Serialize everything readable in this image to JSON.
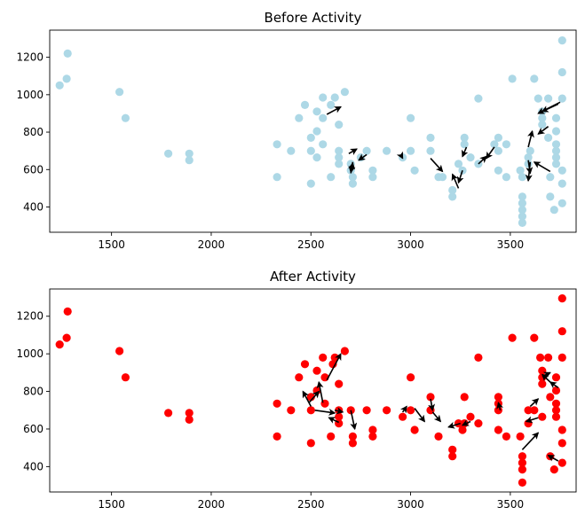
{
  "chart_data": [
    {
      "type": "scatter",
      "title": "Before Activity",
      "xlabel": "",
      "ylabel": "",
      "xlim": [
        1190,
        3830
      ],
      "ylim": [
        265,
        1345
      ],
      "x_ticks": [
        1500,
        2000,
        2500,
        3000,
        3500
      ],
      "y_ticks": [
        400,
        600,
        800,
        1000,
        1200
      ],
      "grid": false,
      "legend": "none",
      "marker_color": "#add8e6",
      "arrow_color": "#000000",
      "points": [
        [
          1240,
          1050
        ],
        [
          1275,
          1085
        ],
        [
          1280,
          1220
        ],
        [
          1540,
          1015
        ],
        [
          1570,
          875
        ],
        [
          1785,
          685
        ],
        [
          1890,
          685
        ],
        [
          1890,
          650
        ],
        [
          2330,
          735
        ],
        [
          2330,
          560
        ],
        [
          2400,
          700
        ],
        [
          2440,
          875
        ],
        [
          2470,
          945
        ],
        [
          2500,
          770
        ],
        [
          2500,
          700
        ],
        [
          2500,
          525
        ],
        [
          2530,
          910
        ],
        [
          2530,
          805
        ],
        [
          2530,
          665
        ],
        [
          2560,
          985
        ],
        [
          2560,
          735
        ],
        [
          2560,
          875
        ],
        [
          2600,
          560
        ],
        [
          2600,
          945
        ],
        [
          2620,
          985
        ],
        [
          2640,
          700
        ],
        [
          2640,
          665
        ],
        [
          2640,
          630
        ],
        [
          2640,
          840
        ],
        [
          2670,
          1015
        ],
        [
          2700,
          630
        ],
        [
          2700,
          595
        ],
        [
          2710,
          560
        ],
        [
          2710,
          525
        ],
        [
          2750,
          665
        ],
        [
          2780,
          700
        ],
        [
          2810,
          595
        ],
        [
          2810,
          560
        ],
        [
          2880,
          700
        ],
        [
          2960,
          665
        ],
        [
          3000,
          700
        ],
        [
          3000,
          875
        ],
        [
          3020,
          595
        ],
        [
          3100,
          770
        ],
        [
          3100,
          700
        ],
        [
          3140,
          560
        ],
        [
          3160,
          560
        ],
        [
          3210,
          490
        ],
        [
          3210,
          455
        ],
        [
          3240,
          630
        ],
        [
          3260,
          595
        ],
        [
          3270,
          735
        ],
        [
          3270,
          770
        ],
        [
          3300,
          665
        ],
        [
          3340,
          630
        ],
        [
          3340,
          980
        ],
        [
          3420,
          735
        ],
        [
          3440,
          770
        ],
        [
          3440,
          700
        ],
        [
          3440,
          595
        ],
        [
          3480,
          560
        ],
        [
          3480,
          735
        ],
        [
          3510,
          1085
        ],
        [
          3550,
          595
        ],
        [
          3560,
          455
        ],
        [
          3560,
          420
        ],
        [
          3560,
          385
        ],
        [
          3560,
          350
        ],
        [
          3560,
          315
        ],
        [
          3560,
          560
        ],
        [
          3590,
          665
        ],
        [
          3590,
          630
        ],
        [
          3600,
          700
        ],
        [
          3620,
          1085
        ],
        [
          3640,
          980
        ],
        [
          3660,
          910
        ],
        [
          3660,
          875
        ],
        [
          3660,
          840
        ],
        [
          3690,
          980
        ],
        [
          3690,
          770
        ],
        [
          3700,
          560
        ],
        [
          3700,
          455
        ],
        [
          3720,
          385
        ],
        [
          3730,
          875
        ],
        [
          3730,
          805
        ],
        [
          3730,
          735
        ],
        [
          3730,
          700
        ],
        [
          3730,
          665
        ],
        [
          3730,
          630
        ],
        [
          3760,
          1290
        ],
        [
          3760,
          1120
        ],
        [
          3760,
          980
        ],
        [
          3760,
          595
        ],
        [
          3760,
          525
        ],
        [
          3760,
          420
        ]
      ],
      "arrows": [
        [
          2580,
          895,
          2650,
          935
        ],
        [
          2690,
          685,
          2730,
          710
        ],
        [
          2780,
          680,
          2740,
          650
        ],
        [
          2700,
          580,
          2710,
          635
        ],
        [
          2710,
          640,
          2700,
          585
        ],
        [
          2950,
          680,
          2960,
          660
        ],
        [
          3100,
          660,
          3160,
          590
        ],
        [
          3240,
          500,
          3210,
          575
        ],
        [
          3260,
          595,
          3240,
          530
        ],
        [
          3280,
          720,
          3260,
          670
        ],
        [
          3340,
          630,
          3380,
          670
        ],
        [
          3420,
          720,
          3380,
          660
        ],
        [
          3590,
          720,
          3610,
          805
        ],
        [
          3590,
          650,
          3600,
          580
        ],
        [
          3600,
          640,
          3590,
          540
        ],
        [
          3700,
          590,
          3620,
          640
        ],
        [
          3740,
          950,
          3660,
          910
        ],
        [
          3750,
          960,
          3640,
          900
        ],
        [
          3690,
          830,
          3640,
          790
        ]
      ]
    },
    {
      "type": "scatter",
      "title": "After Activity",
      "xlabel": "",
      "ylabel": "",
      "xlim": [
        1190,
        3830
      ],
      "ylim": [
        265,
        1345
      ],
      "x_ticks": [
        1500,
        2000,
        2500,
        3000,
        3500
      ],
      "y_ticks": [
        400,
        600,
        800,
        1000,
        1200
      ],
      "grid": false,
      "legend": "none",
      "marker_color": "#ff0000",
      "arrow_color": "#000000",
      "points": [
        [
          1240,
          1050
        ],
        [
          1275,
          1085
        ],
        [
          1280,
          1225
        ],
        [
          1540,
          1015
        ],
        [
          1570,
          875
        ],
        [
          1785,
          685
        ],
        [
          1890,
          685
        ],
        [
          1890,
          650
        ],
        [
          2330,
          735
        ],
        [
          2330,
          560
        ],
        [
          2400,
          700
        ],
        [
          2440,
          875
        ],
        [
          2470,
          945
        ],
        [
          2500,
          770
        ],
        [
          2500,
          700
        ],
        [
          2500,
          525
        ],
        [
          2530,
          910
        ],
        [
          2530,
          805
        ],
        [
          2560,
          980
        ],
        [
          2570,
          735
        ],
        [
          2570,
          875
        ],
        [
          2600,
          560
        ],
        [
          2610,
          945
        ],
        [
          2620,
          980
        ],
        [
          2640,
          700
        ],
        [
          2640,
          665
        ],
        [
          2640,
          630
        ],
        [
          2640,
          840
        ],
        [
          2670,
          1015
        ],
        [
          2700,
          700
        ],
        [
          2710,
          560
        ],
        [
          2710,
          525
        ],
        [
          2780,
          700
        ],
        [
          2810,
          595
        ],
        [
          2810,
          560
        ],
        [
          2880,
          700
        ],
        [
          2960,
          665
        ],
        [
          3000,
          700
        ],
        [
          3000,
          875
        ],
        [
          3020,
          595
        ],
        [
          3100,
          770
        ],
        [
          3100,
          700
        ],
        [
          3140,
          560
        ],
        [
          3210,
          490
        ],
        [
          3210,
          455
        ],
        [
          3240,
          630
        ],
        [
          3260,
          595
        ],
        [
          3270,
          630
        ],
        [
          3270,
          770
        ],
        [
          3300,
          665
        ],
        [
          3340,
          630
        ],
        [
          3340,
          980
        ],
        [
          3440,
          770
        ],
        [
          3440,
          735
        ],
        [
          3440,
          700
        ],
        [
          3440,
          595
        ],
        [
          3480,
          560
        ],
        [
          3510,
          1085
        ],
        [
          3550,
          560
        ],
        [
          3560,
          455
        ],
        [
          3560,
          420
        ],
        [
          3560,
          385
        ],
        [
          3560,
          315
        ],
        [
          3590,
          700
        ],
        [
          3590,
          630
        ],
        [
          3620,
          1085
        ],
        [
          3620,
          700
        ],
        [
          3650,
          980
        ],
        [
          3660,
          910
        ],
        [
          3660,
          875
        ],
        [
          3660,
          840
        ],
        [
          3660,
          665
        ],
        [
          3690,
          980
        ],
        [
          3700,
          770
        ],
        [
          3700,
          455
        ],
        [
          3720,
          385
        ],
        [
          3730,
          875
        ],
        [
          3730,
          805
        ],
        [
          3730,
          735
        ],
        [
          3730,
          700
        ],
        [
          3730,
          665
        ],
        [
          3760,
          1295
        ],
        [
          3760,
          1120
        ],
        [
          3760,
          980
        ],
        [
          3760,
          595
        ],
        [
          3760,
          525
        ],
        [
          3760,
          420
        ]
      ],
      "arrows": [
        [
          2500,
          720,
          2460,
          800
        ],
        [
          2490,
          740,
          2540,
          800
        ],
        [
          2560,
          740,
          2540,
          850
        ],
        [
          2580,
          860,
          2650,
          1000
        ],
        [
          2520,
          700,
          2620,
          685
        ],
        [
          2620,
          700,
          2660,
          690
        ],
        [
          2640,
          635,
          2590,
          660
        ],
        [
          2700,
          700,
          2720,
          600
        ],
        [
          2960,
          690,
          2980,
          720
        ],
        [
          3020,
          710,
          3070,
          640
        ],
        [
          3100,
          760,
          3110,
          700
        ],
        [
          3110,
          690,
          3150,
          640
        ],
        [
          3250,
          630,
          3190,
          610
        ],
        [
          3300,
          640,
          3260,
          620
        ],
        [
          3450,
          700,
          3440,
          740
        ],
        [
          3560,
          490,
          3640,
          580
        ],
        [
          3600,
          720,
          3640,
          760
        ],
        [
          3640,
          660,
          3580,
          640
        ],
        [
          3660,
          880,
          3700,
          900
        ],
        [
          3700,
          850,
          3660,
          890
        ],
        [
          3740,
          430,
          3690,
          460
        ],
        [
          3740,
          820,
          3700,
          850
        ]
      ]
    }
  ]
}
